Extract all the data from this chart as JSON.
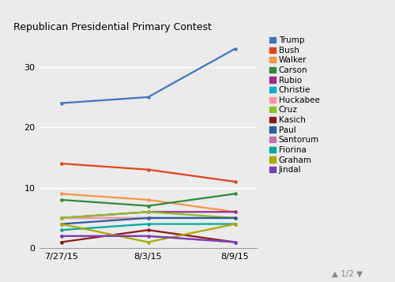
{
  "title": "Republican Presidential Primary Contest",
  "x_labels": [
    "7/27/15",
    "8/3/15",
    "8/9/15"
  ],
  "series": [
    {
      "name": "Trump",
      "color": "#4472C4",
      "values": [
        24,
        25,
        33
      ]
    },
    {
      "name": "Bush",
      "color": "#E2441A",
      "values": [
        14,
        13,
        11
      ]
    },
    {
      "name": "Walker",
      "color": "#F79646",
      "values": [
        9,
        8,
        6
      ]
    },
    {
      "name": "Carson",
      "color": "#2E8B3A",
      "values": [
        8,
        7,
        9
      ]
    },
    {
      "name": "Rubio",
      "color": "#9B2D8E",
      "values": [
        5,
        6,
        6
      ]
    },
    {
      "name": "Christie",
      "color": "#00B0C8",
      "values": [
        5,
        5,
        5
      ]
    },
    {
      "name": "Huckabee",
      "color": "#FF91A4",
      "values": [
        5,
        5,
        5
      ]
    },
    {
      "name": "Cruz",
      "color": "#8CBF26",
      "values": [
        5,
        6,
        5
      ]
    },
    {
      "name": "Kasich",
      "color": "#8B1A1A",
      "values": [
        1,
        3,
        1
      ]
    },
    {
      "name": "Paul",
      "color": "#2B5C9E",
      "values": [
        4,
        5,
        5
      ]
    },
    {
      "name": "Santorum",
      "color": "#C46DB0",
      "values": [
        2,
        2,
        1
      ]
    },
    {
      "name": "Fiorina",
      "color": "#00A89D",
      "values": [
        3,
        4,
        4
      ]
    },
    {
      "name": "Graham",
      "color": "#AAAA00",
      "values": [
        4,
        1,
        4
      ]
    },
    {
      "name": "Jindal",
      "color": "#7B3FB5",
      "values": [
        2,
        2,
        1
      ]
    }
  ],
  "ylim": [
    0,
    35
  ],
  "yticks": [
    0,
    10,
    20,
    30
  ],
  "bg_color": "#EBEBEB",
  "grid_color": "#FFFFFF",
  "legend_fontsize": 7.5,
  "title_fontsize": 9,
  "figsize": [
    5.0,
    3.57
  ],
  "dpi": 100
}
